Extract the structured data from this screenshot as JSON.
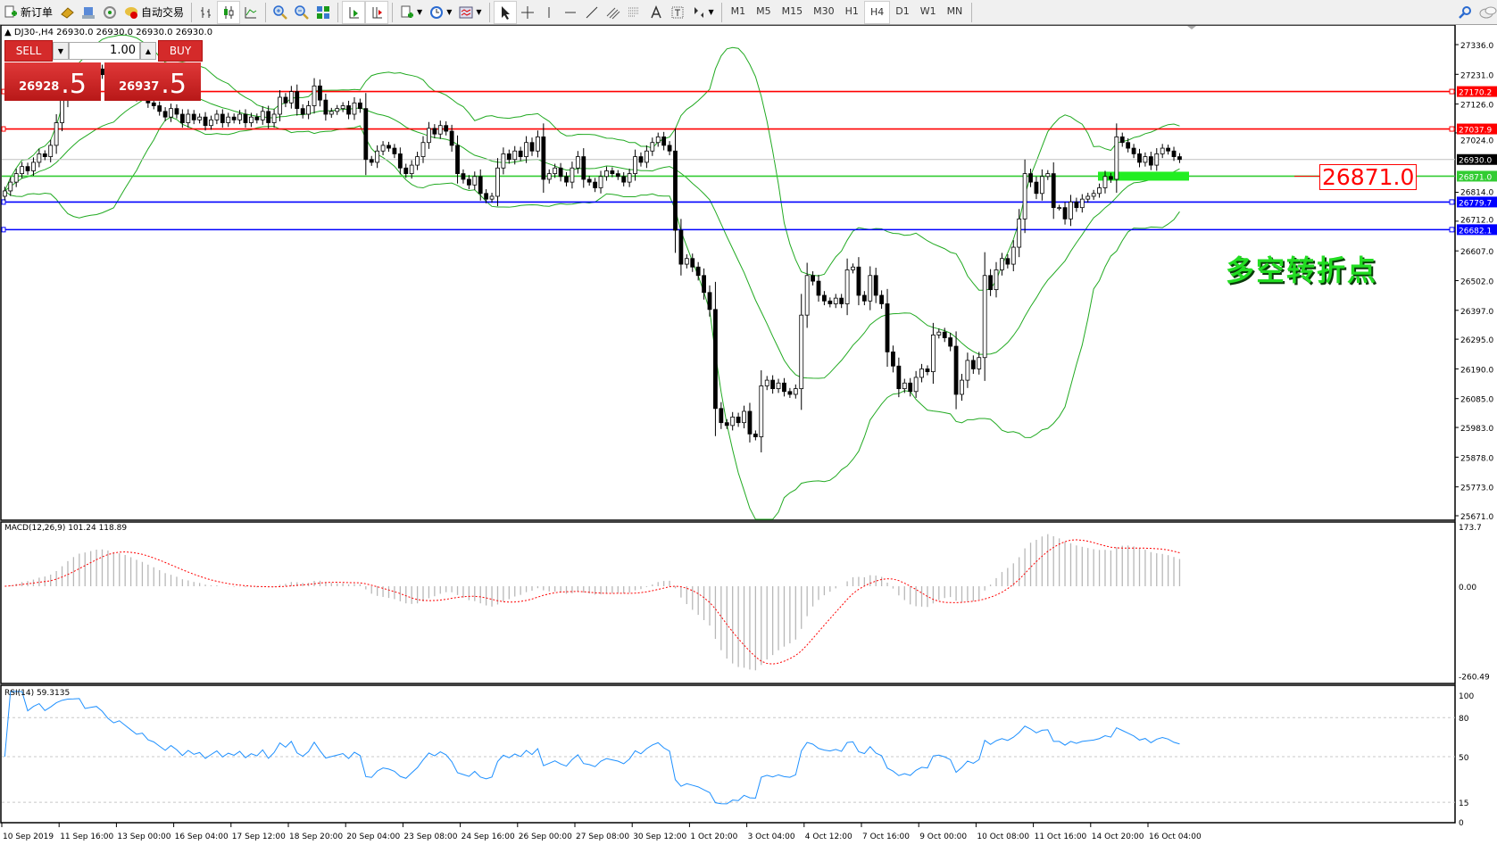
{
  "toolbar": {
    "new_order": "新订单",
    "auto_trading": "自动交易",
    "timeframes": [
      "M1",
      "M5",
      "M15",
      "M30",
      "H1",
      "H4",
      "D1",
      "W1",
      "MN"
    ],
    "active_timeframe": "H4"
  },
  "header": {
    "symbol": "DJ30-,H4",
    "ohlc": "26930.0 26930.0 26930.0 26930.0"
  },
  "trade_panel": {
    "sell_label": "SELL",
    "buy_label": "BUY",
    "lot": "1.00",
    "sell_price_main": "26928",
    "sell_price_pip": ".5",
    "buy_price_main": "26937",
    "buy_price_pip": ".5"
  },
  "annotations": {
    "price_box": "26871.0",
    "text": "多空转折点"
  },
  "colors": {
    "bands": "#22aa22",
    "red_line": "#ff0000",
    "green_line": "#33cc33",
    "blue_line": "#0000ff",
    "macd_signal": "#ff0000",
    "macd_hist": "#b8b8b8",
    "rsi": "#1e90ff"
  },
  "chart_data": {
    "type": "candlestick",
    "symbol": "DJ30-",
    "timeframe": "H4",
    "ylim": [
      25671.0,
      27336.0
    ],
    "price_ticks": [
      "27336.0",
      "27231.0",
      "27126.0",
      "27024.0",
      "26814.0",
      "26712.0",
      "26607.0",
      "26502.0",
      "26397.0",
      "26295.0",
      "26190.0",
      "26085.0",
      "25983.0",
      "25878.0",
      "25773.0",
      "25671.0"
    ],
    "time_labels": [
      "10 Sep 2019",
      "11 Sep 16:00",
      "13 Sep 00:00",
      "16 Sep 04:00",
      "17 Sep 12:00",
      "18 Sep 20:00",
      "20 Sep 04:00",
      "23 Sep 08:00",
      "24 Sep 16:00",
      "26 Sep 00:00",
      "27 Sep 08:00",
      "30 Sep 12:00",
      "1 Oct 20:00",
      "3 Oct 04:00",
      "4 Oct 12:00",
      "7 Oct 16:00",
      "9 Oct 00:00",
      "10 Oct 08:00",
      "11 Oct 16:00",
      "14 Oct 20:00",
      "16 Oct 04:00"
    ],
    "close": [
      26819,
      26850,
      26880,
      26905,
      26890,
      26920,
      26950,
      26940,
      26980,
      27060,
      27140,
      27200,
      27210,
      27230,
      27190,
      27220,
      27250,
      27230,
      27200,
      27180,
      27210,
      27190,
      27170,
      27150,
      27160,
      27130,
      27120,
      27100,
      27080,
      27110,
      27090,
      27060,
      27090,
      27070,
      27080,
      27050,
      27070,
      27090,
      27060,
      27080,
      27070,
      27090,
      27060,
      27080,
      27070,
      27100,
      27060,
      27090,
      27150,
      27130,
      27170,
      27110,
      27090,
      27120,
      27190,
      27140,
      27090,
      27100,
      27110,
      27120,
      27090,
      27130,
      27110,
      26930,
      26920,
      26960,
      26980,
      26970,
      26950,
      26900,
      26880,
      26910,
      26940,
      26990,
      27040,
      27020,
      27050,
      27030,
      26980,
      26880,
      26860,
      26840,
      26870,
      26810,
      26790,
      26800,
      26900,
      26950,
      26930,
      26960,
      26940,
      26990,
      26960,
      27010,
      26860,
      26880,
      26900,
      26870,
      26850,
      26900,
      26940,
      26860,
      26850,
      26830,
      26870,
      26890,
      26880,
      26870,
      26850,
      26880,
      26940,
      26920,
      26960,
      26990,
      27010,
      26980,
      26960,
      26680,
      26560,
      26580,
      26550,
      26520,
      26460,
      26400,
      26050,
      26000,
      25990,
      26020,
      26000,
      26040,
      25960,
      25950,
      26130,
      26150,
      26120,
      26140,
      26110,
      26100,
      26120,
      26380,
      26520,
      26500,
      26450,
      26430,
      26420,
      26440,
      26420,
      26540,
      26550,
      26450,
      26430,
      26520,
      26450,
      26420,
      26250,
      26200,
      26120,
      26140,
      26110,
      26160,
      26190,
      26180,
      26310,
      26320,
      26300,
      26270,
      26100,
      26150,
      26220,
      26190,
      26230,
      26520,
      26470,
      26540,
      26580,
      26560,
      26620,
      26720,
      26880,
      26850,
      26810,
      26870,
      26880,
      26760,
      26760,
      26720,
      26780,
      26760,
      26790,
      26800,
      26810,
      26830,
      26870,
      26860,
      27010,
      26990,
      26970,
      26950,
      26920,
      26940,
      26910,
      26950,
      26970,
      26960,
      26940,
      26930
    ],
    "horizontal_lines": [
      {
        "price": 27170.2,
        "label": "27170.2",
        "color": "#ff0000"
      },
      {
        "price": 27037.9,
        "label": "27037.9",
        "color": "#ff0000"
      },
      {
        "price": 26871.0,
        "label": "26871.0",
        "color": "#33cc33"
      },
      {
        "price": 26779.7,
        "label": "26779.7",
        "color": "#0000ff"
      },
      {
        "price": 26682.1,
        "label": "26682.1",
        "color": "#0000ff"
      }
    ],
    "bid_line": {
      "price": 26930.0,
      "label": "26930.0"
    },
    "bollinger": {
      "period": 20,
      "deviation": 2
    },
    "macd": {
      "label": "MACD(12,26,9) 101.24 118.89",
      "fast": 12,
      "slow": 26,
      "signal": 9,
      "ylim": [
        -260.49,
        173.7
      ],
      "ticks": [
        "173.7",
        "0.00",
        "-260.49"
      ]
    },
    "rsi": {
      "label": "RSI(14) 59.3135",
      "period": 14,
      "ylim": [
        0,
        100
      ],
      "levels": [
        80,
        50,
        15
      ],
      "ticks": [
        "100",
        "80",
        "50",
        "15",
        "0"
      ]
    }
  }
}
